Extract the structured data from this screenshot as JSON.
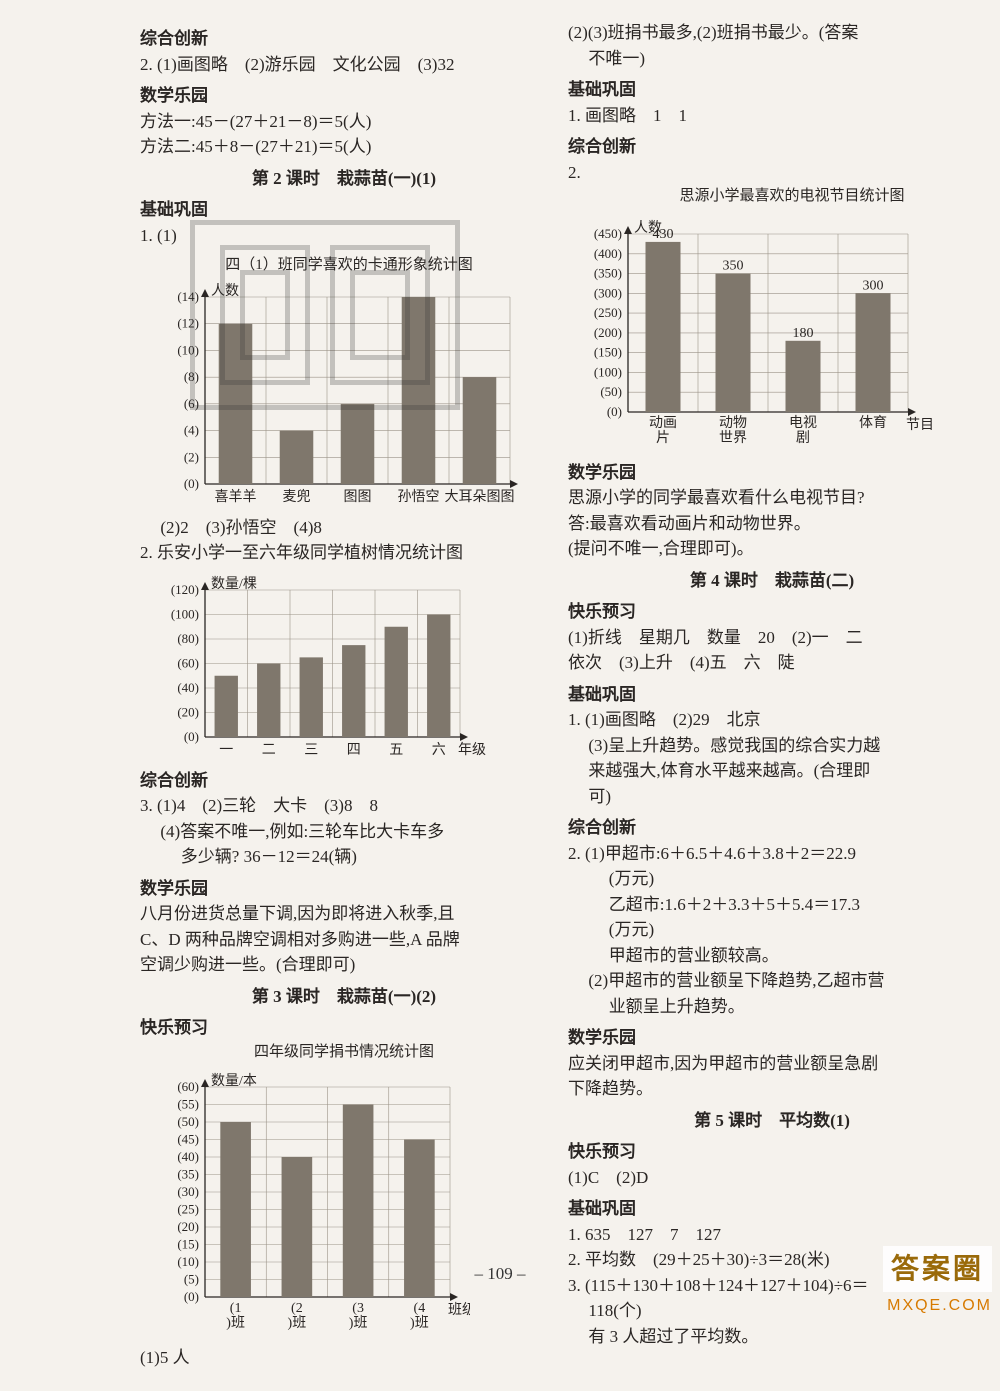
{
  "page_number": "– 109 –",
  "watermark": {
    "top": "答案圈",
    "bottom": "MXQE.COM"
  },
  "left": {
    "h1": "综合创新",
    "l1": "2. (1)画图略　(2)游乐园　文化公园　(3)32",
    "h2": "数学乐园",
    "l2a": "方法一:45－(27＋21－8)＝5(人)",
    "l2b": "方法二:45＋8－(27＋21)＝5(人)",
    "lesson2": "第 2 课时　栽蒜苗(一)(1)",
    "h3": "基础巩固",
    "q1": "1. (1)",
    "chart1": {
      "title": "四（1）班同学喜欢的卡通形象统计图",
      "ylabel": "人数",
      "ylim": [
        0,
        14
      ],
      "ytick_step": 2,
      "categories": [
        "喜羊羊",
        "麦兜",
        "图图",
        "孙悟空",
        "大耳朵图图"
      ],
      "values": [
        12,
        4,
        6,
        14,
        8
      ],
      "bar_color": "#7f776c",
      "grid_color": "#9b9388",
      "bg": "#f5f2ed",
      "bar_width": 0.55
    },
    "q1b": "(2)2　(3)孙悟空　(4)8",
    "q2": "2. 乐安小学一至六年级同学植树情况统计图",
    "chart2": {
      "ylabel": "数量/棵",
      "ylim": [
        0,
        120
      ],
      "ytick_step": 20,
      "categories": [
        "一",
        "二",
        "三",
        "四",
        "五",
        "六"
      ],
      "xlabel": "年级",
      "values": [
        50,
        60,
        65,
        75,
        90,
        100
      ],
      "bar_color": "#7f776c",
      "grid_color": "#9b9388",
      "bar_width": 0.55
    },
    "h4": "综合创新",
    "l3a": "3. (1)4　(2)三轮　大卡　(3)8　8",
    "l3b": "(4)答案不唯一,例如:三轮车比大卡车多",
    "l3c": "多少辆? 36－12＝24(辆)",
    "h5": "数学乐园",
    "p1a": "八月份进货总量下调,因为即将进入秋季,且",
    "p1b": "C、D 两种品牌空调相对多购进一些,A 品牌",
    "p1c": "空调少购进一些。(合理即可)",
    "lesson3": "第 3 课时　栽蒜苗(一)(2)",
    "h6": "快乐预习",
    "chart3title": "四年级同学捐书情况统计图",
    "chart3": {
      "ylabel": "数量/本",
      "ylim": [
        0,
        60
      ],
      "ytick_step": 5,
      "categories": [
        "(1)班",
        "(2)班",
        "(3)班",
        "(4)班"
      ],
      "xlabel": "班级",
      "values": [
        50,
        40,
        55,
        45
      ],
      "bar_color": "#7f776c",
      "grid_color": "#9b9388",
      "bar_width": 0.5
    },
    "l4": "(1)5 人"
  },
  "right": {
    "l0a": "(2)(3)班捐书最多,(2)班捐书最少。(答案",
    "l0b": "不唯一)",
    "h1": "基础巩固",
    "l1": "1. 画图略　1　1",
    "h2": "综合创新",
    "q2": "2.",
    "chart4title": "思源小学最喜欢的电视节目统计图",
    "chart4": {
      "ylabel": "人数",
      "ylim": [
        0,
        450
      ],
      "ytick_step": 50,
      "categories": [
        "动画片",
        "动物世界",
        "电视剧",
        "体育"
      ],
      "xlabel": "节目",
      "values": [
        430,
        350,
        180,
        300
      ],
      "value_labels": [
        "430",
        "350",
        "180",
        "300"
      ],
      "bar_color": "#7f776c",
      "grid_color": "#9b9388",
      "bar_width": 0.5
    },
    "h3": "数学乐园",
    "l2a": "思源小学的同学最喜欢看什么电视节目?",
    "l2b": "答:最喜欢看动画片和动物世界。",
    "l2c": "(提问不唯一,合理即可)。",
    "lesson4": "第 4 课时　栽蒜苗(二)",
    "h4": "快乐预习",
    "l3a": "(1)折线　星期几　数量　20　(2)一　二",
    "l3b": "依次　(3)上升　(4)五　六　陡",
    "h5": "基础巩固",
    "l4a": "1. (1)画图略　(2)29　北京",
    "l4b": "(3)呈上升趋势。感觉我国的综合实力越",
    "l4c": "来越强大,体育水平越来越高。(合理即",
    "l4d": "可)",
    "h6": "综合创新",
    "l5a": "2. (1)甲超市:6＋6.5＋4.6＋3.8＋2＝22.9",
    "l5b": "(万元)",
    "l5c": "乙超市:1.6＋2＋3.3＋5＋5.4＝17.3",
    "l5d": "(万元)",
    "l5e": "甲超市的营业额较高。",
    "l5f": "(2)甲超市的营业额呈下降趋势,乙超市营",
    "l5g": "业额呈上升趋势。",
    "h7": "数学乐园",
    "l6a": "应关闭甲超市,因为甲超市的营业额呈急剧",
    "l6b": "下降趋势。",
    "lesson5": "第 5 课时　平均数(1)",
    "h8": "快乐预习",
    "l7": "(1)C　(2)D",
    "h9": "基础巩固",
    "l8": "1. 635　127　7　127",
    "l9": "2. 平均数　(29＋25＋30)÷3＝28(米)",
    "l10a": "3. (115＋130＋108＋124＋127＋104)÷6＝",
    "l10b": "118(个)",
    "l10c": "有 3 人超过了平均数。"
  }
}
